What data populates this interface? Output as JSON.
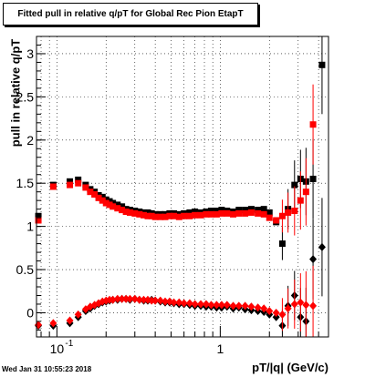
{
  "chart_data": {
    "type": "scatter",
    "title": "Fitted pull in relative q/pT for Global Rec Pion EtapT",
    "xlabel": "pT/|q| (GeV/c)",
    "ylabel": "pull in relative q/pT",
    "x_scale": "log",
    "xlim": [
      0.075,
      4.6
    ],
    "ylim": [
      -0.28,
      3.2
    ],
    "x_ticks": [
      {
        "value": 0.1,
        "label": "10",
        "exp": "-1"
      },
      {
        "value": 1,
        "label": "1",
        "exp": ""
      }
    ],
    "y_ticks": [
      {
        "value": 0,
        "label": "0"
      },
      {
        "value": 0.5,
        "label": "0.5"
      },
      {
        "value": 1,
        "label": "1"
      },
      {
        "value": 1.5,
        "label": "1.5"
      },
      {
        "value": 2,
        "label": "2"
      },
      {
        "value": 2.5,
        "label": "2.5"
      },
      {
        "value": 3,
        "label": "3"
      }
    ],
    "grid": true,
    "series": [
      {
        "color": "#000000",
        "marker": "square",
        "points": [
          [
            0.077,
            1.12
          ],
          [
            0.095,
            1.48
          ],
          [
            0.12,
            1.52
          ],
          [
            0.135,
            1.54
          ],
          [
            0.15,
            1.48
          ],
          [
            0.16,
            1.43
          ],
          [
            0.17,
            1.4
          ],
          [
            0.18,
            1.36
          ],
          [
            0.19,
            1.34
          ],
          [
            0.2,
            1.31
          ],
          [
            0.21,
            1.29
          ],
          [
            0.22,
            1.27
          ],
          [
            0.235,
            1.25
          ],
          [
            0.25,
            1.23
          ],
          [
            0.265,
            1.2
          ],
          [
            0.28,
            1.19
          ],
          [
            0.3,
            1.18
          ],
          [
            0.32,
            1.17
          ],
          [
            0.34,
            1.16
          ],
          [
            0.36,
            1.16
          ],
          [
            0.38,
            1.15
          ],
          [
            0.4,
            1.14
          ],
          [
            0.43,
            1.14
          ],
          [
            0.46,
            1.14
          ],
          [
            0.49,
            1.15
          ],
          [
            0.52,
            1.15
          ],
          [
            0.56,
            1.14
          ],
          [
            0.6,
            1.15
          ],
          [
            0.65,
            1.16
          ],
          [
            0.7,
            1.17
          ],
          [
            0.76,
            1.16
          ],
          [
            0.82,
            1.17
          ],
          [
            0.88,
            1.18
          ],
          [
            0.95,
            1.18
          ],
          [
            1.02,
            1.19
          ],
          [
            1.1,
            1.18
          ],
          [
            1.2,
            1.17
          ],
          [
            1.3,
            1.19
          ],
          [
            1.42,
            1.19
          ],
          [
            1.55,
            1.2
          ],
          [
            1.7,
            1.19
          ],
          [
            1.85,
            1.2
          ],
          [
            2.0,
            1.16
          ],
          [
            2.2,
            1.05
          ],
          [
            2.4,
            0.8
          ],
          [
            2.6,
            1.2
          ],
          [
            2.85,
            1.48
          ],
          [
            3.1,
            1.55
          ],
          [
            3.35,
            1.52
          ],
          [
            3.7,
            1.55
          ],
          [
            4.2,
            2.87
          ]
        ]
      },
      {
        "color": "#ff0000",
        "marker": "square",
        "points": [
          [
            0.077,
            1.07
          ],
          [
            0.095,
            1.46
          ],
          [
            0.12,
            1.48
          ],
          [
            0.135,
            1.5
          ],
          [
            0.15,
            1.45
          ],
          [
            0.16,
            1.4
          ],
          [
            0.17,
            1.37
          ],
          [
            0.18,
            1.33
          ],
          [
            0.19,
            1.3
          ],
          [
            0.2,
            1.27
          ],
          [
            0.21,
            1.25
          ],
          [
            0.22,
            1.23
          ],
          [
            0.235,
            1.21
          ],
          [
            0.25,
            1.19
          ],
          [
            0.265,
            1.17
          ],
          [
            0.28,
            1.16
          ],
          [
            0.3,
            1.15
          ],
          [
            0.32,
            1.14
          ],
          [
            0.34,
            1.13
          ],
          [
            0.36,
            1.12
          ],
          [
            0.38,
            1.12
          ],
          [
            0.4,
            1.11
          ],
          [
            0.43,
            1.11
          ],
          [
            0.46,
            1.11
          ],
          [
            0.49,
            1.12
          ],
          [
            0.52,
            1.12
          ],
          [
            0.56,
            1.11
          ],
          [
            0.6,
            1.12
          ],
          [
            0.65,
            1.12
          ],
          [
            0.7,
            1.13
          ],
          [
            0.76,
            1.13
          ],
          [
            0.82,
            1.14
          ],
          [
            0.88,
            1.14
          ],
          [
            0.95,
            1.14
          ],
          [
            1.02,
            1.15
          ],
          [
            1.1,
            1.15
          ],
          [
            1.2,
            1.14
          ],
          [
            1.3,
            1.15
          ],
          [
            1.42,
            1.15
          ],
          [
            1.55,
            1.16
          ],
          [
            1.7,
            1.15
          ],
          [
            1.85,
            1.14
          ],
          [
            2.0,
            1.1
          ],
          [
            2.2,
            1.07
          ],
          [
            2.4,
            1.12
          ],
          [
            2.6,
            1.16
          ],
          [
            2.85,
            1.18
          ],
          [
            3.1,
            1.3
          ],
          [
            3.35,
            1.4
          ],
          [
            3.7,
            2.18
          ]
        ]
      },
      {
        "color": "#000000",
        "marker": "diamond",
        "points": [
          [
            0.077,
            -0.15
          ],
          [
            0.095,
            -0.15
          ],
          [
            0.12,
            -0.12
          ],
          [
            0.135,
            -0.05
          ],
          [
            0.15,
            0.02
          ],
          [
            0.16,
            0.05
          ],
          [
            0.17,
            0.08
          ],
          [
            0.18,
            0.1
          ],
          [
            0.19,
            0.12
          ],
          [
            0.2,
            0.13
          ],
          [
            0.21,
            0.14
          ],
          [
            0.22,
            0.15
          ],
          [
            0.235,
            0.15
          ],
          [
            0.25,
            0.16
          ],
          [
            0.265,
            0.16
          ],
          [
            0.28,
            0.15
          ],
          [
            0.3,
            0.16
          ],
          [
            0.32,
            0.15
          ],
          [
            0.34,
            0.14
          ],
          [
            0.36,
            0.14
          ],
          [
            0.38,
            0.15
          ],
          [
            0.4,
            0.14
          ],
          [
            0.43,
            0.13
          ],
          [
            0.46,
            0.12
          ],
          [
            0.49,
            0.12
          ],
          [
            0.52,
            0.11
          ],
          [
            0.56,
            0.1
          ],
          [
            0.6,
            0.1
          ],
          [
            0.65,
            0.09
          ],
          [
            0.7,
            0.08
          ],
          [
            0.76,
            0.08
          ],
          [
            0.82,
            0.07
          ],
          [
            0.88,
            0.07
          ],
          [
            0.95,
            0.06
          ],
          [
            1.02,
            0.06
          ],
          [
            1.1,
            0.07
          ],
          [
            1.2,
            0.05
          ],
          [
            1.3,
            0.06
          ],
          [
            1.42,
            0.04
          ],
          [
            1.55,
            0.03
          ],
          [
            1.7,
            0.02
          ],
          [
            1.85,
            0.01
          ],
          [
            2.0,
            -0.02
          ],
          [
            2.2,
            -0.05
          ],
          [
            2.4,
            -0.15
          ],
          [
            2.6,
            0.08
          ],
          [
            2.85,
            0.2
          ],
          [
            3.1,
            -0.05
          ],
          [
            3.35,
            -0.1
          ],
          [
            3.7,
            0.62
          ],
          [
            4.2,
            0.76
          ]
        ]
      },
      {
        "color": "#ff0000",
        "marker": "diamond",
        "points": [
          [
            0.077,
            -0.14
          ],
          [
            0.095,
            -0.12
          ],
          [
            0.12,
            -0.09
          ],
          [
            0.135,
            -0.02
          ],
          [
            0.15,
            0.04
          ],
          [
            0.16,
            0.07
          ],
          [
            0.17,
            0.09
          ],
          [
            0.18,
            0.11
          ],
          [
            0.19,
            0.13
          ],
          [
            0.2,
            0.14
          ],
          [
            0.21,
            0.15
          ],
          [
            0.22,
            0.15
          ],
          [
            0.235,
            0.16
          ],
          [
            0.25,
            0.16
          ],
          [
            0.265,
            0.16
          ],
          [
            0.28,
            0.16
          ],
          [
            0.3,
            0.16
          ],
          [
            0.32,
            0.15
          ],
          [
            0.34,
            0.15
          ],
          [
            0.36,
            0.15
          ],
          [
            0.38,
            0.14
          ],
          [
            0.4,
            0.14
          ],
          [
            0.43,
            0.14
          ],
          [
            0.46,
            0.13
          ],
          [
            0.49,
            0.13
          ],
          [
            0.52,
            0.12
          ],
          [
            0.56,
            0.12
          ],
          [
            0.6,
            0.11
          ],
          [
            0.65,
            0.11
          ],
          [
            0.7,
            0.1
          ],
          [
            0.76,
            0.1
          ],
          [
            0.82,
            0.1
          ],
          [
            0.88,
            0.09
          ],
          [
            0.95,
            0.09
          ],
          [
            1.02,
            0.09
          ],
          [
            1.1,
            0.09
          ],
          [
            1.2,
            0.08
          ],
          [
            1.3,
            0.08
          ],
          [
            1.42,
            0.08
          ],
          [
            1.55,
            0.07
          ],
          [
            1.7,
            0.06
          ],
          [
            1.85,
            0.05
          ],
          [
            2.0,
            0.02
          ],
          [
            2.2,
            0.0
          ],
          [
            2.4,
            -0.02
          ],
          [
            2.6,
            0.05
          ],
          [
            2.85,
            0.1
          ],
          [
            3.1,
            0.12
          ],
          [
            3.35,
            0.09
          ],
          [
            3.7,
            0.08
          ]
        ]
      }
    ]
  },
  "timestamp": "Wed Jan 31 10:55:23 2018"
}
